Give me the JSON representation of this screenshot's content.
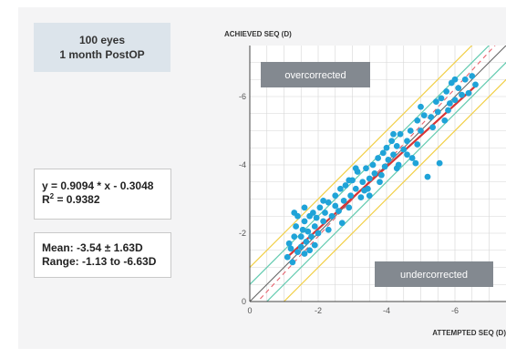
{
  "info": {
    "line1": "100 eyes",
    "line2": "1 month PostOP"
  },
  "regression": {
    "equation": "y = 0.9094 * x - 0.3048",
    "r2_label": "R",
    "r2_exp": "2",
    "r2_value": " = 0.9382"
  },
  "summary": {
    "mean": "Mean: -3.54 ± 1.63D",
    "range": "Range: -1.13 to -6.63D"
  },
  "colors": {
    "panel": "#f4f4f5",
    "info_bg": "#dce4eb",
    "dots": "#1fa3d8",
    "fit_line": "#d93434",
    "identity_line": "#666666",
    "dashed_line": "#e7636e",
    "band_05": "#63cbb0",
    "band_10": "#f2d04a",
    "label_bg": "#838990",
    "grid": "#d6d6d6"
  },
  "chart_data": {
    "type": "scatter",
    "xlabel": "ATTEMPTED SEQ (D)",
    "ylabel": "ACHIEVED SEQ (D)",
    "xlim": [
      0,
      -7.5
    ],
    "ylim": [
      0,
      -7.5
    ],
    "xticks": [
      0,
      -2,
      -4,
      -6
    ],
    "yticks": [
      0,
      -2,
      -4,
      -6
    ],
    "grid": true,
    "annotations": [
      "overcorrected",
      "undercorrected"
    ],
    "fit": {
      "slope": 0.9094,
      "intercept": -0.3048
    },
    "bands": [
      0.5,
      1.0
    ],
    "points": [
      [
        -1.1,
        -1.3
      ],
      [
        -1.15,
        -1.7
      ],
      [
        -1.25,
        -1.15
      ],
      [
        -1.3,
        -1.9
      ],
      [
        -1.35,
        -2.2
      ],
      [
        -1.4,
        -1.45
      ],
      [
        -1.4,
        -2.5
      ],
      [
        -1.5,
        -1.6
      ],
      [
        -1.5,
        -1.9
      ],
      [
        -1.55,
        -2.1
      ],
      [
        -1.6,
        -1.4
      ],
      [
        -1.6,
        -2.35
      ],
      [
        -1.65,
        -1.75
      ],
      [
        -1.7,
        -2.05
      ],
      [
        -1.75,
        -1.5
      ],
      [
        -1.75,
        -2.5
      ],
      [
        -1.8,
        -1.9
      ],
      [
        -1.85,
        -2.6
      ],
      [
        -1.9,
        -2.2
      ],
      [
        -1.95,
        -2.45
      ],
      [
        -2.0,
        -2.0
      ],
      [
        -2.05,
        -2.75
      ],
      [
        -2.15,
        -2.35
      ],
      [
        -2.2,
        -2.6
      ],
      [
        -2.3,
        -2.9
      ],
      [
        -2.3,
        -2.1
      ],
      [
        -2.4,
        -2.5
      ],
      [
        -2.5,
        -2.8
      ],
      [
        -2.5,
        -3.1
      ],
      [
        -2.6,
        -2.65
      ],
      [
        -2.65,
        -3.3
      ],
      [
        -2.75,
        -2.95
      ],
      [
        -2.8,
        -3.4
      ],
      [
        -2.9,
        -2.75
      ],
      [
        -2.95,
        -3.1
      ],
      [
        -3.0,
        -3.55
      ],
      [
        -3.1,
        -3.3
      ],
      [
        -3.15,
        -3.8
      ],
      [
        -3.25,
        -3.05
      ],
      [
        -3.3,
        -3.5
      ],
      [
        -3.4,
        -3.9
      ],
      [
        -3.45,
        -3.3
      ],
      [
        -3.5,
        -3.6
      ],
      [
        -3.6,
        -4.0
      ],
      [
        -3.65,
        -3.75
      ],
      [
        -3.75,
        -4.2
      ],
      [
        -3.8,
        -3.5
      ],
      [
        -3.9,
        -4.35
      ],
      [
        -3.95,
        -3.95
      ],
      [
        -4.0,
        -4.5
      ],
      [
        -4.05,
        -4.15
      ],
      [
        -4.15,
        -4.7
      ],
      [
        -4.2,
        -4.3
      ],
      [
        -4.3,
        -4.55
      ],
      [
        -4.35,
        -4.0
      ],
      [
        -4.4,
        -4.9
      ],
      [
        -4.5,
        -4.45
      ],
      [
        -4.3,
        -3.9
      ],
      [
        -4.6,
        -4.7
      ],
      [
        -4.7,
        -5.0
      ],
      [
        -4.75,
        -4.2
      ],
      [
        -4.85,
        -4.05
      ],
      [
        -4.9,
        -4.6
      ],
      [
        -5.0,
        -5.0
      ],
      [
        -5.1,
        -5.45
      ],
      [
        -5.2,
        -3.65
      ],
      [
        -5.3,
        -5.4
      ],
      [
        -5.35,
        -5.1
      ],
      [
        -5.45,
        -5.85
      ],
      [
        -5.5,
        -5.55
      ],
      [
        -5.55,
        -4.05
      ],
      [
        -5.6,
        -5.95
      ],
      [
        -5.7,
        -5.3
      ],
      [
        -5.75,
        -6.15
      ],
      [
        -5.85,
        -5.8
      ],
      [
        -5.9,
        -6.4
      ],
      [
        -6.0,
        -5.9
      ],
      [
        -6.1,
        -6.25
      ],
      [
        -6.2,
        -6.05
      ],
      [
        -6.3,
        -6.5
      ],
      [
        -6.4,
        -6.1
      ],
      [
        -6.5,
        -6.6
      ],
      [
        -6.6,
        -6.35
      ],
      [
        -1.3,
        -2.6
      ],
      [
        -2.7,
        -2.3
      ],
      [
        -3.5,
        -3.1
      ],
      [
        -5.0,
        -5.7
      ],
      [
        -3.1,
        -3.9
      ],
      [
        -2.15,
        -2.95
      ],
      [
        -4.2,
        -4.9
      ],
      [
        -4.9,
        -5.3
      ],
      [
        -1.9,
        -1.65
      ],
      [
        -6.0,
        -6.5
      ],
      [
        -3.85,
        -3.7
      ],
      [
        -2.9,
        -3.55
      ],
      [
        -1.6,
        -2.75
      ],
      [
        -4.6,
        -4.3
      ],
      [
        -5.8,
        -5.6
      ],
      [
        -3.35,
        -3.25
      ],
      [
        -1.2,
        -1.55
      ]
    ]
  }
}
